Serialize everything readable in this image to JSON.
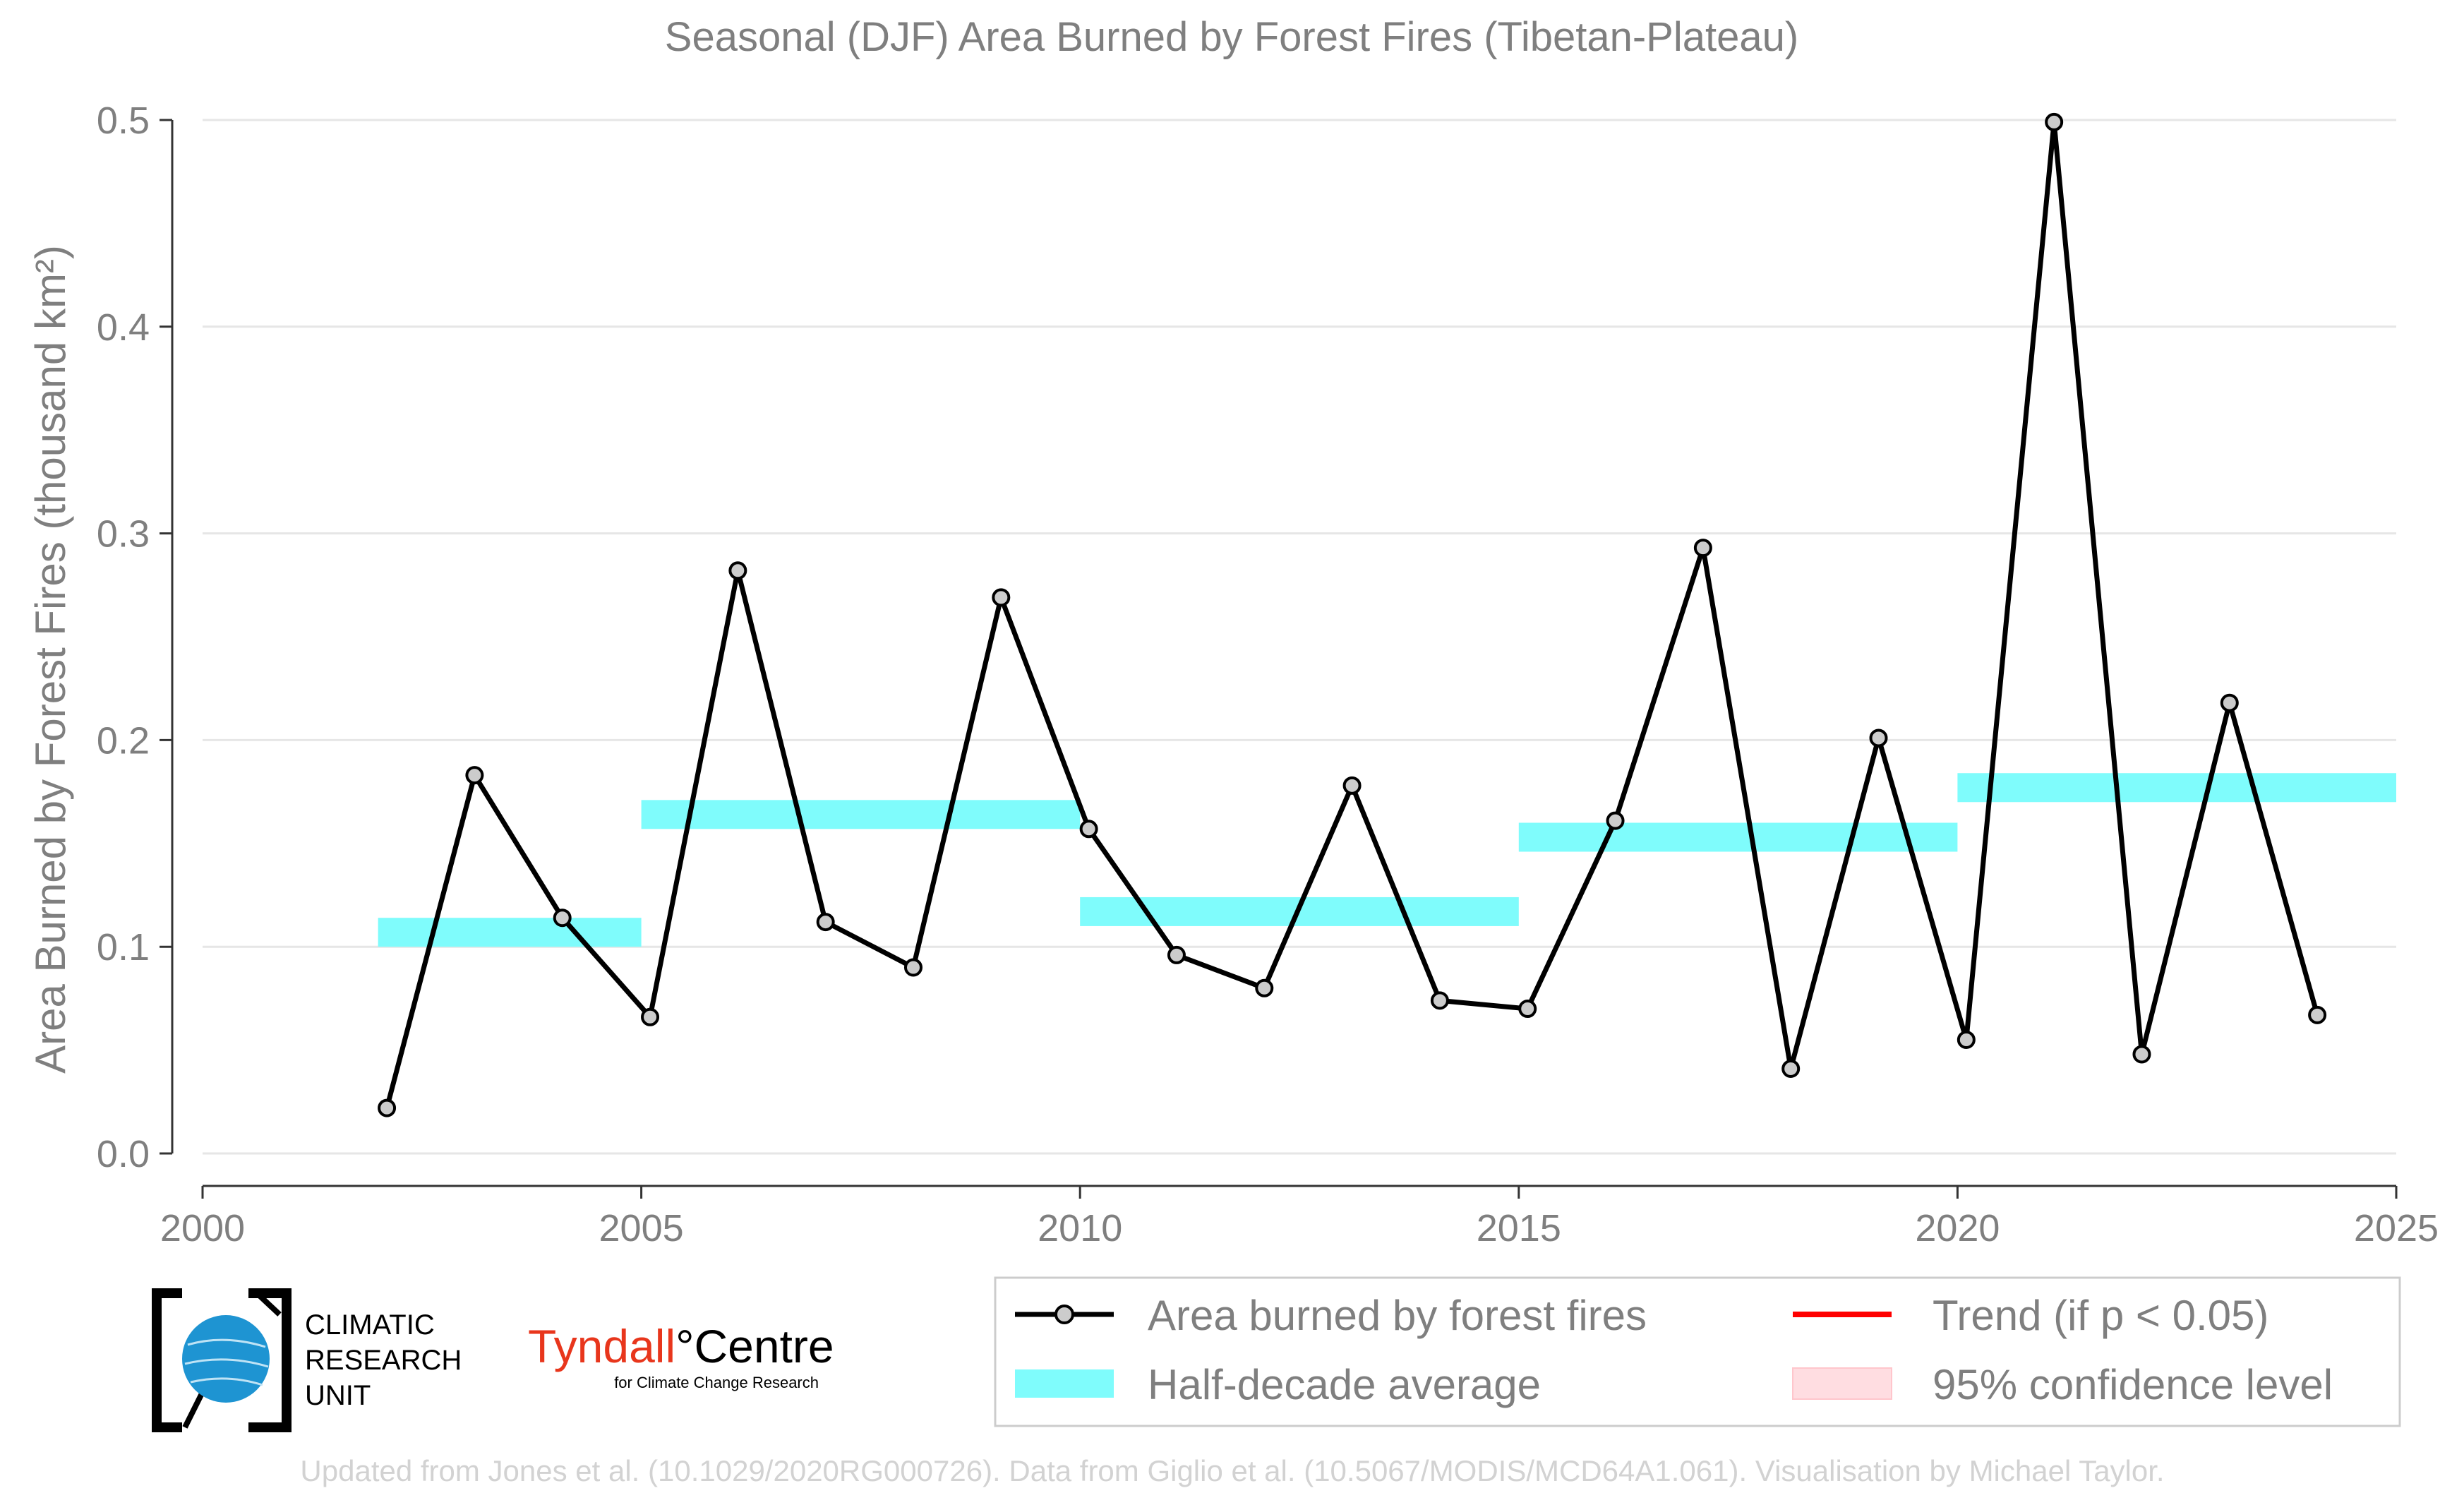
{
  "chart_data": {
    "type": "line",
    "title": "Seasonal (DJF) Area Burned by Forest Fires (Tibetan-Plateau)",
    "xlabel": "",
    "ylabel": "Area Burned by Forest Fires (thousand km²)",
    "xlim": [
      2000,
      2025
    ],
    "ylim": [
      0,
      0.5
    ],
    "xticks": [
      "2000",
      "2005",
      "2010",
      "2015",
      "2020",
      "2025"
    ],
    "yticks": [
      "0.0",
      "0.1",
      "0.2",
      "0.3",
      "0.4",
      "0.5"
    ],
    "grid": "horizontal",
    "legend_placement": "bottom-right",
    "series": [
      {
        "name": "Area burned by forest fires",
        "color": "#000000",
        "x": [
          2002.1,
          2003.1,
          2004.1,
          2005.1,
          2006.1,
          2007.1,
          2008.1,
          2009.1,
          2010.1,
          2011.1,
          2012.1,
          2013.1,
          2014.1,
          2015.1,
          2016.1,
          2017.1,
          2018.1,
          2019.1,
          2020.1,
          2021.1,
          2022.1,
          2023.1,
          2024.1
        ],
        "y": [
          0.022,
          0.183,
          0.114,
          0.066,
          0.282,
          0.112,
          0.09,
          0.269,
          0.157,
          0.096,
          0.08,
          0.178,
          0.074,
          0.07,
          0.161,
          0.293,
          0.041,
          0.201,
          0.055,
          0.499,
          0.048,
          0.218,
          0.067
        ]
      }
    ],
    "half_decade_average": {
      "name": "Half-decade average",
      "color": "#7ffcfc",
      "segments": [
        {
          "x0": 2002,
          "x1": 2005,
          "y": 0.107
        },
        {
          "x0": 2005,
          "x1": 2010,
          "y": 0.164
        },
        {
          "x0": 2010,
          "x1": 2015,
          "y": 0.117
        },
        {
          "x0": 2015,
          "x1": 2020,
          "y": 0.153
        },
        {
          "x0": 2020,
          "x1": 2025,
          "y": 0.177
        }
      ]
    },
    "legend": [
      {
        "label": "Area burned by forest fires",
        "kind": "line-marker",
        "color": "#000000"
      },
      {
        "label": "Trend (if p < 0.05)",
        "kind": "line",
        "color": "#ff0000"
      },
      {
        "label": "Half-decade average",
        "kind": "band",
        "color": "#7ffcfc"
      },
      {
        "label": "95% confidence level",
        "kind": "patch",
        "color": "#ffdde1"
      }
    ]
  },
  "logos": {
    "cru_line1": "CLIMATIC",
    "cru_line2": "RESEARCH",
    "cru_line3": "UNIT",
    "tyndall_red": "Tyndall",
    "tyndall_black": "°Centre",
    "tyndall_sub": "for Climate Change Research"
  },
  "footer": "Updated from Jones et al. (10.1029/2020RG000726). Data from Giglio et al. (10.5067/MODIS/MCD64A1.061). Visualisation by Michael Taylor."
}
